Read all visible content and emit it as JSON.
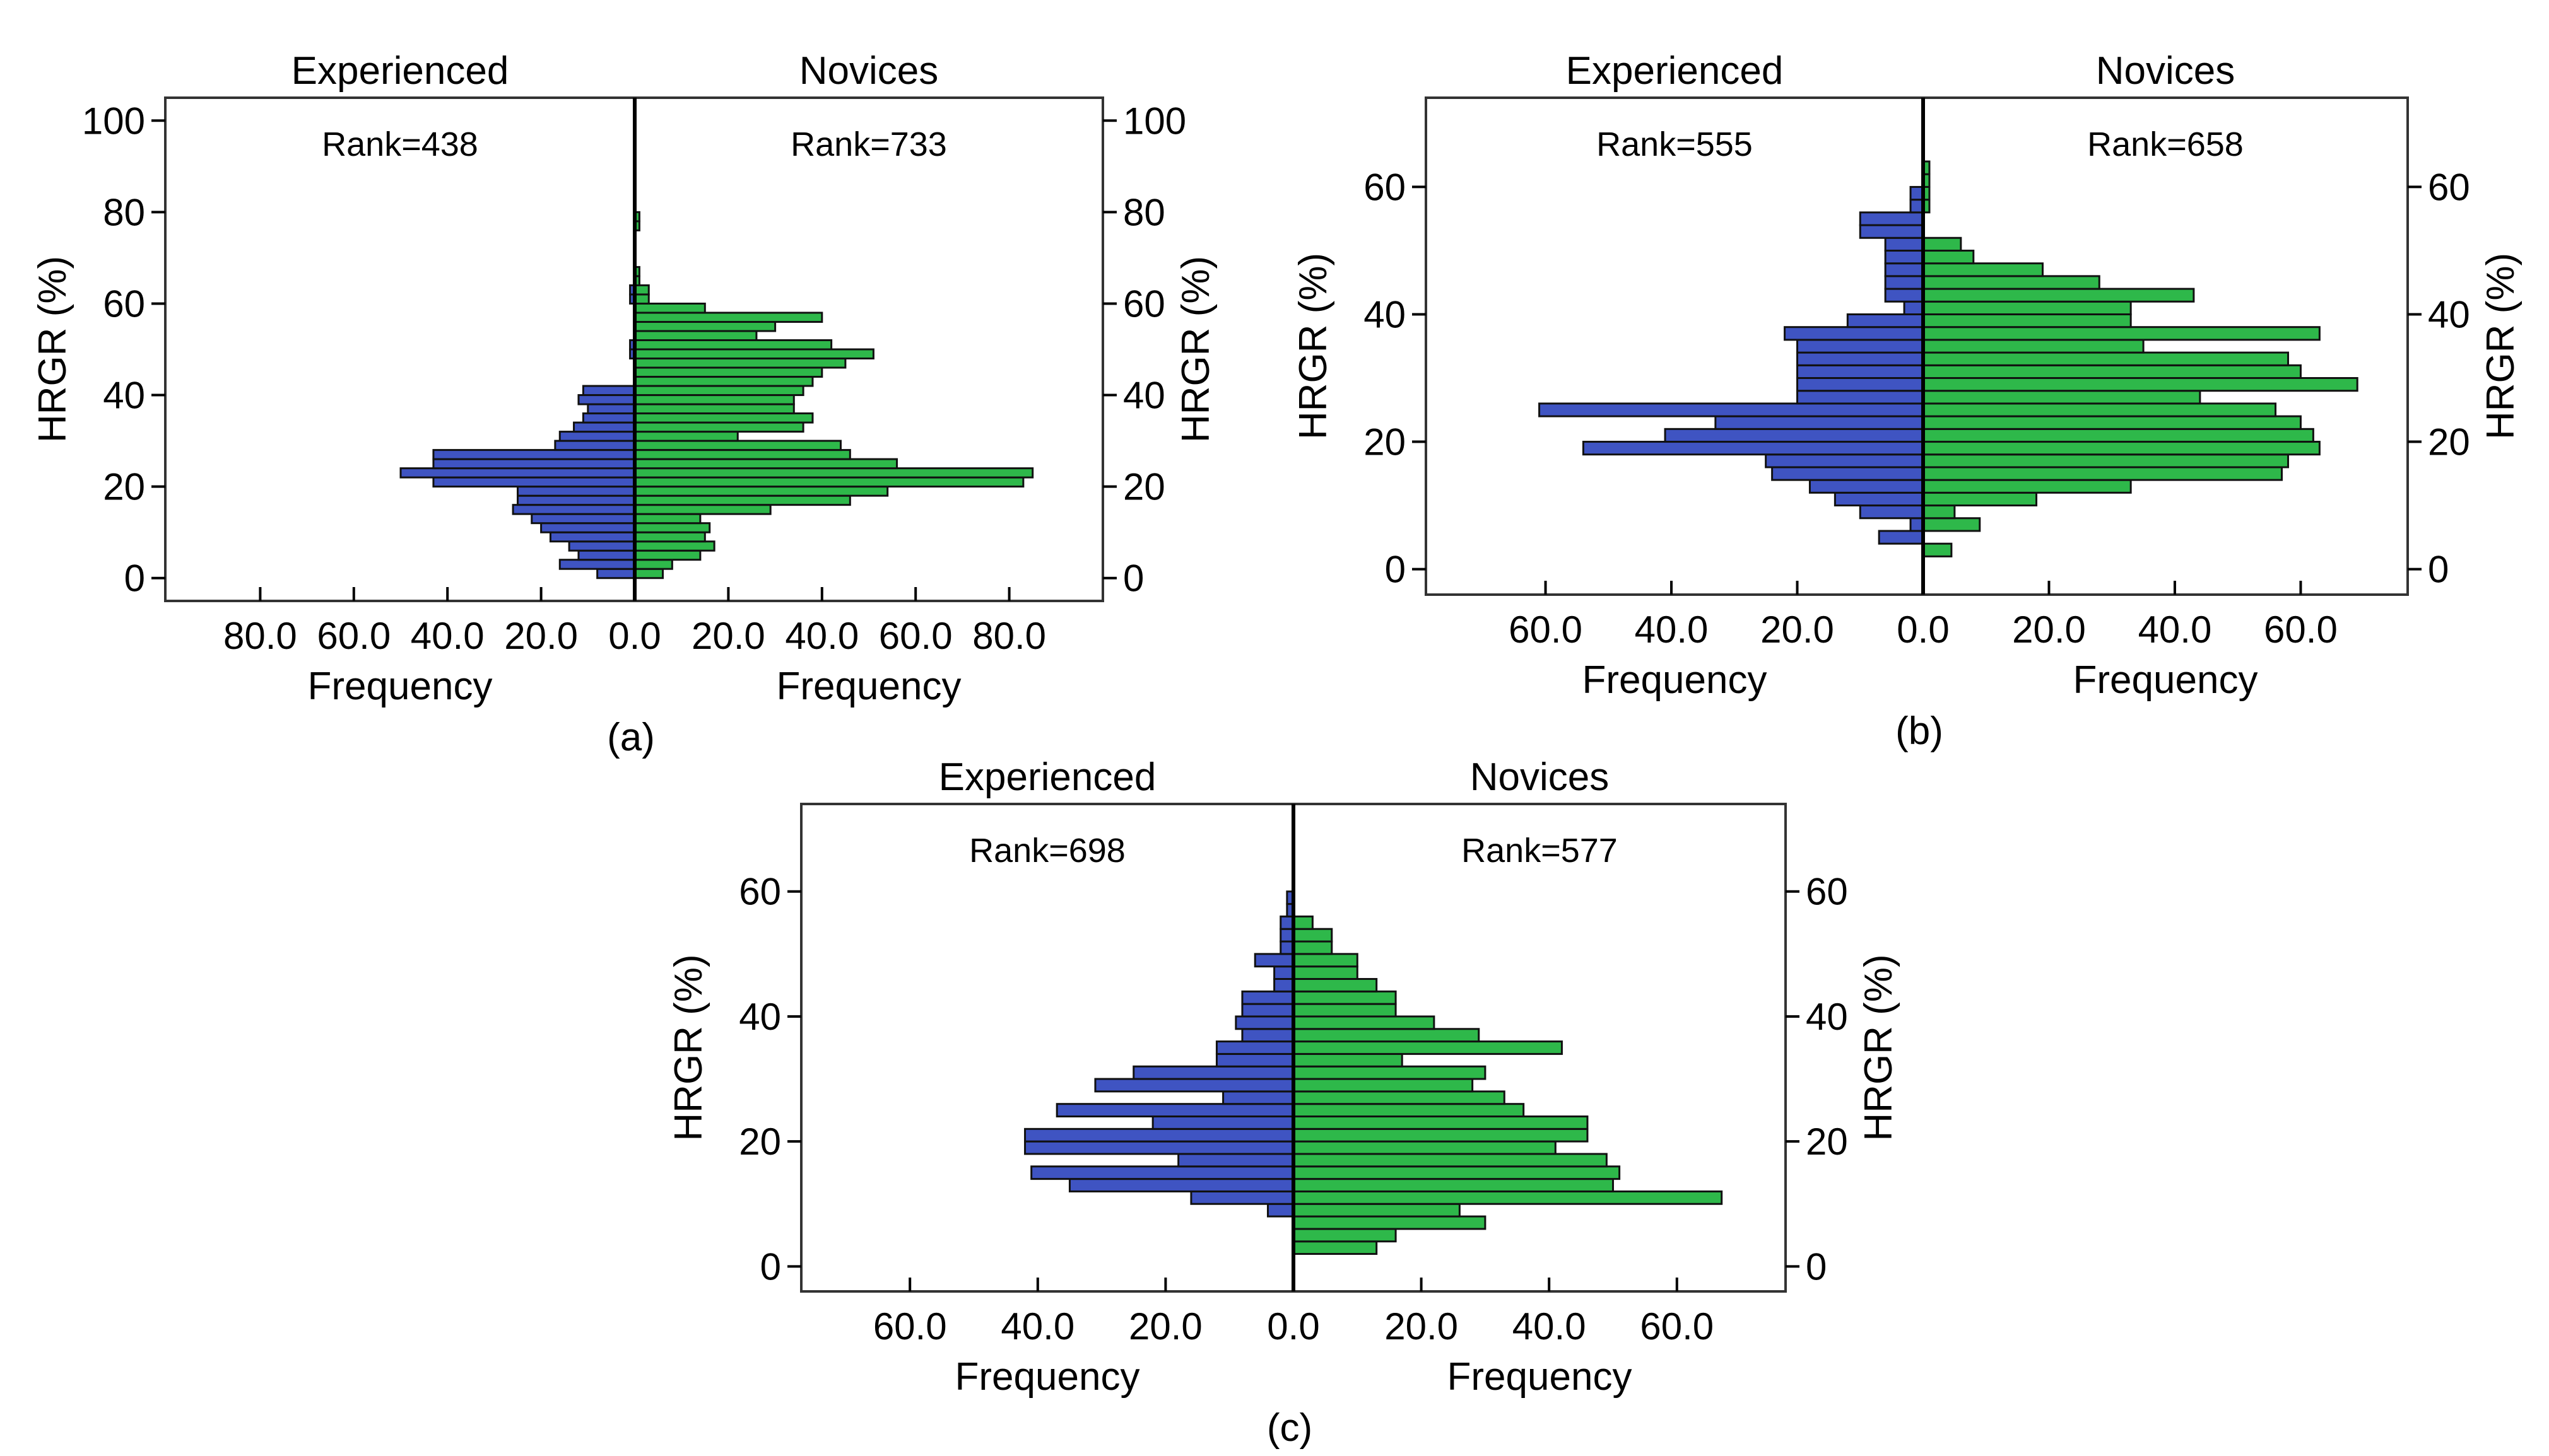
{
  "colors": {
    "experienced": "#3f54c2",
    "novices": "#2eb84a",
    "outline": "#111111",
    "frame": "#333333"
  },
  "chart_data": [
    {
      "type": "bar",
      "orientation": "horizontal-back-to-back",
      "panel_label": "(a)",
      "left_title": "Experienced",
      "right_title": "Novices",
      "left_rank": "Rank=438",
      "right_rank": "Rank=733",
      "xlabel": "Frequency",
      "ylabel": "HRGR (%)",
      "xmax": 100,
      "xticks": [
        "80.0",
        "60.0",
        "40.0",
        "20.0",
        "0.0",
        "20.0",
        "40.0",
        "60.0",
        "80.0"
      ],
      "yticks": [
        "0",
        "20",
        "40",
        "60",
        "80",
        "100"
      ],
      "ylim": [
        -5,
        105
      ],
      "bin_width": 2,
      "bin_start": 0,
      "experienced": [
        8,
        16,
        12,
        14,
        18,
        20,
        22,
        26,
        25,
        25,
        43,
        50,
        43,
        43,
        17,
        16,
        13,
        11,
        10,
        12,
        11,
        0,
        0,
        0,
        1,
        1,
        0,
        0,
        0,
        0,
        1,
        1,
        0,
        0,
        0,
        0,
        0,
        0,
        0,
        0
      ],
      "novices": [
        6,
        8,
        14,
        17,
        15,
        16,
        14,
        29,
        46,
        54,
        83,
        85,
        56,
        46,
        44,
        22,
        36,
        38,
        34,
        34,
        36,
        38,
        40,
        45,
        51,
        42,
        26,
        30,
        40,
        15,
        3,
        3,
        1,
        1,
        0,
        0,
        0,
        0,
        1,
        1
      ]
    },
    {
      "type": "bar",
      "orientation": "horizontal-back-to-back",
      "panel_label": "(b)",
      "left_title": "Experienced",
      "right_title": "Novices",
      "left_rank": "Rank=555",
      "right_rank": "Rank=658",
      "xlabel": "Frequency",
      "ylabel": "HRGR (%)",
      "xmax": 77,
      "xticks": [
        "60.0",
        "40.0",
        "20.0",
        "0.0",
        "20.0",
        "40.0",
        "60.0"
      ],
      "yticks": [
        "0",
        "20",
        "40",
        "60"
      ],
      "ylim": [
        -4,
        74
      ],
      "bin_width": 2,
      "bin_start": 0,
      "experienced": [
        0,
        0,
        7,
        2,
        10,
        14,
        18,
        24,
        25,
        54,
        41,
        33,
        61,
        20,
        20,
        20,
        20,
        20,
        22,
        12,
        3,
        6,
        6,
        6,
        6,
        6,
        10,
        10,
        2,
        2,
        0,
        0
      ],
      "novices": [
        0,
        4.5,
        0,
        9,
        5,
        18,
        33,
        57,
        58,
        63,
        62,
        60,
        56,
        44,
        69,
        60,
        58,
        35,
        63,
        33,
        33,
        43,
        28,
        19,
        8,
        6,
        0,
        0,
        1,
        1,
        1,
        1
      ]
    },
    {
      "type": "bar",
      "orientation": "horizontal-back-to-back",
      "panel_label": "(c)",
      "left_title": "Experienced",
      "right_title": "Novices",
      "left_rank": "Rank=698",
      "right_rank": "Rank=577",
      "xlabel": "Frequency",
      "ylabel": "HRGR (%)",
      "xmax": 77,
      "xticks": [
        "60.0",
        "40.0",
        "20.0",
        "0.0",
        "20.0",
        "40.0",
        "60.0"
      ],
      "yticks": [
        "0",
        "20",
        "40",
        "60"
      ],
      "ylim": [
        -4,
        74
      ],
      "bin_width": 2,
      "bin_start": 0,
      "experienced": [
        0,
        0,
        0,
        0,
        4,
        16,
        35,
        41,
        18,
        42,
        42,
        22,
        37,
        11,
        31,
        25,
        12,
        12,
        8,
        9,
        8,
        8,
        3,
        3,
        6,
        2,
        2,
        2,
        1,
        1,
        0,
        0
      ],
      "novices": [
        0,
        13,
        16,
        30,
        26,
        67,
        50,
        51,
        49,
        41,
        46,
        46,
        36,
        33,
        28,
        30,
        17,
        42,
        29,
        22,
        16,
        16,
        13,
        10,
        10,
        6,
        6,
        3,
        0,
        0,
        0,
        0
      ]
    }
  ]
}
